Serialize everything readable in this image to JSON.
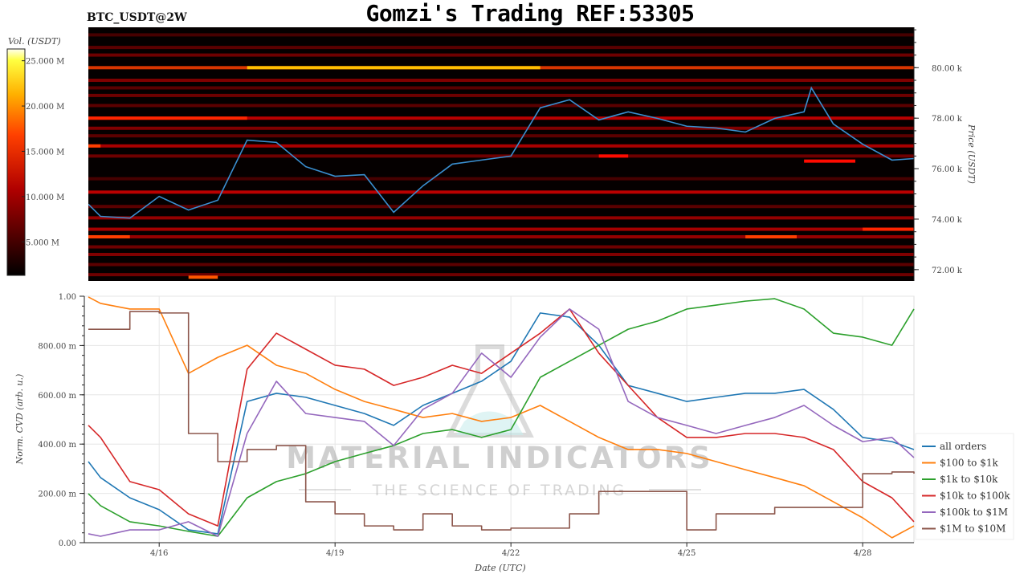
{
  "header": {
    "title": "Gomzi's Trading REF:53305",
    "symbol": "BTC_USDT@2W"
  },
  "watermark": {
    "line1": "MATERIAL INDICATORS",
    "line2": "THE SCIENCE OF TRADING"
  },
  "chart_data": [
    {
      "type": "heatmap",
      "title": "BTC_USDT@2W",
      "ylabel": "Price (USDT)",
      "ylim": [
        71.55,
        81.6
      ],
      "yticks": [
        "72.00 k",
        "74.00 k",
        "76.00 k",
        "78.00 k",
        "80.00 k"
      ],
      "ytick_values": [
        72,
        74,
        76,
        78,
        80
      ],
      "xlim": [
        "04-14 19:00",
        "04-28 21:00"
      ],
      "colorbar": {
        "label": "Vol. (USDT)",
        "range": [
          1.3,
          26.3
        ],
        "ticks": [
          "5.000 M",
          "10.000 M",
          "15.000 M",
          "20.000 M",
          "25.000 M"
        ],
        "tick_values": [
          5,
          10,
          15,
          20,
          25
        ],
        "colormap": "hot"
      },
      "bands": [
        {
          "price": 81.3,
          "vol": 5
        },
        {
          "price": 80.8,
          "vol": 6
        },
        {
          "price": 80.5,
          "vol": 7
        },
        {
          "price": 80.0,
          "vol": 15
        },
        {
          "price": 79.5,
          "vol": 8
        },
        {
          "price": 79.2,
          "vol": 6
        },
        {
          "price": 78.9,
          "vol": 7
        },
        {
          "price": 78.5,
          "vol": 6
        },
        {
          "price": 78.0,
          "vol": 11
        },
        {
          "price": 77.6,
          "vol": 8
        },
        {
          "price": 77.3,
          "vol": 6
        },
        {
          "price": 76.9,
          "vol": 10
        },
        {
          "price": 76.5,
          "vol": 7
        },
        {
          "price": 75.6,
          "vol": 5
        },
        {
          "price": 75.07,
          "vol": 11
        },
        {
          "price": 74.5,
          "vol": 6
        },
        {
          "price": 74.05,
          "vol": 9
        },
        {
          "price": 73.6,
          "vol": 10
        },
        {
          "price": 73.3,
          "vol": 9
        },
        {
          "price": 72.9,
          "vol": 7
        },
        {
          "price": 72.6,
          "vol": 8
        },
        {
          "price": 72.2,
          "vol": 6
        },
        {
          "price": 71.8,
          "vol": 7
        }
      ],
      "segments": [
        {
          "price": 80.0,
          "from": "04-17 12:00",
          "to": "04-22 12:00",
          "vol": 20
        },
        {
          "price": 78.0,
          "from": "04-14 19:00",
          "to": "04-17 12:00",
          "vol": 14
        },
        {
          "price": 76.9,
          "from": "04-14 19:00",
          "to": "04-15 00:00",
          "vol": 15
        },
        {
          "price": 73.3,
          "from": "04-14 19:00",
          "to": "04-15 12:00",
          "vol": 15
        },
        {
          "price": 71.7,
          "from": "04-16 12:00",
          "to": "04-17 00:00",
          "vol": 16
        },
        {
          "price": 73.3,
          "from": "04-26 00:00",
          "to": "04-26 21:00",
          "vol": 15
        },
        {
          "price": 73.6,
          "from": "04-28 00:00",
          "to": "04-28 21:00",
          "vol": 14
        },
        {
          "price": 76.5,
          "from": "04-23 12:00",
          "to": "04-24 00:00",
          "vol": 13
        },
        {
          "price": 76.3,
          "from": "04-27 00:00",
          "to": "04-27 21:00",
          "vol": 13
        }
      ],
      "price_series": {
        "x": [
          "04-14 19:00",
          "04-15 00:00",
          "04-15 12:00",
          "04-16 00:00",
          "04-16 12:00",
          "04-17 00:00",
          "04-17 12:00",
          "04-18 00:00",
          "04-18 12:00",
          "04-19 00:00",
          "04-19 12:00",
          "04-20 00:00",
          "04-20 12:00",
          "04-21 00:00",
          "04-21 12:00",
          "04-22 00:00",
          "04-22 12:00",
          "04-23 00:00",
          "04-23 12:00",
          "04-24 00:00",
          "04-24 12:00",
          "04-25 00:00",
          "04-25 12:00",
          "04-26 00:00",
          "04-26 12:00",
          "04-27 00:00",
          "04-27 03:00",
          "04-27 12:00",
          "04-28 00:00",
          "04-28 12:00",
          "04-28 21:00"
        ],
        "y": [
          74.59,
          74.11,
          74.04,
          74.9,
          74.36,
          74.75,
          77.13,
          77.04,
          76.08,
          75.7,
          75.76,
          74.27,
          75.32,
          76.18,
          76.34,
          76.5,
          78.41,
          78.73,
          77.93,
          78.25,
          77.99,
          77.68,
          77.61,
          77.45,
          77.99,
          78.25,
          79.2,
          77.77,
          76.97,
          76.34,
          76.4
        ],
        "color": "#3a8fd0"
      }
    },
    {
      "type": "line",
      "xlabel": "Date (UTC)",
      "ylabel": "Norm. CVD (arb. u.)",
      "ylim": [
        0,
        1
      ],
      "yticks": [
        "0.00",
        "200.00 m",
        "400.00 m",
        "600.00 m",
        "800.00 m",
        "1.00"
      ],
      "ytick_values": [
        0,
        0.2,
        0.4,
        0.6,
        0.8,
        1.0
      ],
      "xticks": [
        "4/16",
        "4/19",
        "4/22",
        "4/25",
        "4/28"
      ],
      "xtick_values": [
        "04-16 00:00",
        "04-19 00:00",
        "04-22 00:00",
        "04-25 00:00",
        "04-28 00:00"
      ],
      "xlim": [
        "04-14 19:00",
        "04-28 21:00"
      ],
      "grid": true,
      "legend_position": "right",
      "x": [
        "04-14 19:00",
        "04-15 00:00",
        "04-15 12:00",
        "04-16 00:00",
        "04-16 12:00",
        "04-17 00:00",
        "04-17 12:00",
        "04-18 00:00",
        "04-18 12:00",
        "04-19 00:00",
        "04-19 12:00",
        "04-20 00:00",
        "04-20 12:00",
        "04-21 00:00",
        "04-21 12:00",
        "04-22 00:00",
        "04-22 12:00",
        "04-23 00:00",
        "04-23 12:00",
        "04-24 00:00",
        "04-24 12:00",
        "04-25 00:00",
        "04-25 12:00",
        "04-26 00:00",
        "04-26 12:00",
        "04-27 00:00",
        "04-27 12:00",
        "04-28 00:00",
        "04-28 12:00",
        "04-28 21:00"
      ],
      "series": [
        {
          "name": "all orders",
          "color": "#1f77b4",
          "values": [
            0.329,
            0.264,
            0.182,
            0.134,
            0.052,
            0.036,
            0.573,
            0.606,
            0.59,
            0.557,
            0.524,
            0.476,
            0.557,
            0.606,
            0.655,
            0.736,
            0.932,
            0.915,
            0.801,
            0.638,
            0.606,
            0.573,
            0.59,
            0.606,
            0.606,
            0.622,
            0.541,
            0.427,
            0.41,
            0.378
          ]
        },
        {
          "name": "$100 to $1k",
          "color": "#ff7f0e",
          "values": [
            0.997,
            0.971,
            0.948,
            0.948,
            0.687,
            0.752,
            0.801,
            0.72,
            0.687,
            0.622,
            0.573,
            0.541,
            0.508,
            0.524,
            0.492,
            0.508,
            0.557,
            0.492,
            0.427,
            0.378,
            0.378,
            0.362,
            0.329,
            0.296,
            0.264,
            0.231,
            0.166,
            0.101,
            0.02,
            0.068
          ]
        },
        {
          "name": "$1k to $10k",
          "color": "#2ca02c",
          "values": [
            0.199,
            0.15,
            0.085,
            0.068,
            0.046,
            0.026,
            0.182,
            0.248,
            0.28,
            0.329,
            0.362,
            0.394,
            0.443,
            0.459,
            0.427,
            0.459,
            0.671,
            0.736,
            0.801,
            0.866,
            0.899,
            0.948,
            0.964,
            0.98,
            0.99,
            0.948,
            0.85,
            0.834,
            0.801,
            0.948
          ]
        },
        {
          "name": "$10k to $100k",
          "color": "#d62728",
          "values": [
            0.476,
            0.427,
            0.248,
            0.215,
            0.117,
            0.068,
            0.704,
            0.85,
            0.785,
            0.72,
            0.704,
            0.638,
            0.671,
            0.72,
            0.687,
            0.769,
            0.85,
            0.948,
            0.769,
            0.638,
            0.508,
            0.427,
            0.427,
            0.443,
            0.443,
            0.427,
            0.378,
            0.248,
            0.182,
            0.085
          ]
        },
        {
          "name": "$100k to $1M",
          "color": "#9467bd",
          "values": [
            0.036,
            0.026,
            0.052,
            0.052,
            0.085,
            0.026,
            0.443,
            0.655,
            0.524,
            0.508,
            0.492,
            0.394,
            0.541,
            0.606,
            0.769,
            0.671,
            0.834,
            0.948,
            0.866,
            0.573,
            0.508,
            0.476,
            0.443,
            0.476,
            0.508,
            0.557,
            0.476,
            0.41,
            0.427,
            0.345
          ]
        },
        {
          "name": "$1M to $10M",
          "color": "#8c564b",
          "step": true,
          "values": [
            0.866,
            0.866,
            0.938,
            0.932,
            0.443,
            0.329,
            0.378,
            0.394,
            0.166,
            0.117,
            0.068,
            0.052,
            0.117,
            0.068,
            0.052,
            0.059,
            0.059,
            0.117,
            0.208,
            0.208,
            0.208,
            0.052,
            0.117,
            0.117,
            0.143,
            0.143,
            0.143,
            0.28,
            0.287,
            0.28
          ]
        }
      ]
    }
  ]
}
